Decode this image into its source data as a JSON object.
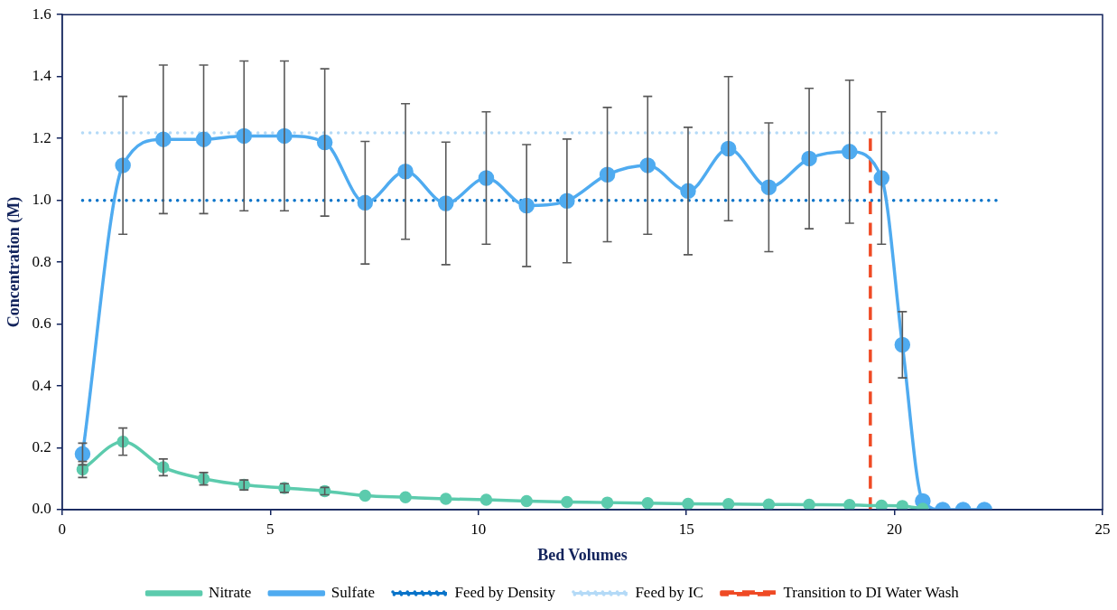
{
  "chart_data": {
    "type": "line",
    "xlabel": "Bed Volumes",
    "ylabel": "Concentration (M)",
    "xlim": [
      0,
      25
    ],
    "xticks": [
      0,
      5,
      10,
      15,
      20,
      25
    ],
    "ylim": [
      0,
      1.6
    ],
    "yticks": [
      {
        "value": 0,
        "label": "0.0"
      },
      {
        "value": 0.2,
        "label": "0.2"
      },
      {
        "value": 0.4,
        "label": "0.4"
      },
      {
        "value": 0.6,
        "label": "0.6"
      },
      {
        "value": 0.8,
        "label": "0.8"
      },
      {
        "value": 1,
        "label": "1.0"
      },
      {
        "value": 1.2,
        "label": "1.2"
      },
      {
        "value": 1.4,
        "label": "1.4"
      },
      {
        "value": 1.6,
        "label": "1.6"
      }
    ],
    "grid": false,
    "legend": "bottom",
    "marker": "circle",
    "line_style": "solid",
    "series": [
      {
        "name": "Nitrate",
        "color": "#5ccbad",
        "x": [
          0.49,
          1.46,
          2.43,
          3.4,
          4.37,
          5.34,
          6.31,
          7.28,
          8.25,
          9.22,
          10.19,
          11.16,
          12.13,
          13.1,
          14.07,
          15.04,
          16.01,
          16.98,
          17.95,
          18.92,
          19.69,
          20.19,
          20.68
        ],
        "values": [
          0.13,
          0.22,
          0.137,
          0.1,
          0.08,
          0.07,
          0.06,
          0.045,
          0.04,
          0.035,
          0.032,
          0.028,
          0.025,
          0.023,
          0.021,
          0.019,
          0.018,
          0.017,
          0.016,
          0.015,
          0.013,
          0.012,
          0.003
        ],
        "errors": [
          0.026,
          0.044,
          0.027,
          0.02,
          0.016,
          0.014,
          0.012,
          null,
          null,
          null,
          null,
          null,
          null,
          null,
          null,
          null,
          null,
          null,
          null,
          null,
          null,
          null,
          null
        ]
      },
      {
        "name": "Sulfate",
        "color": "#4fabf0",
        "x": [
          0.49,
          1.46,
          2.43,
          3.4,
          4.37,
          5.34,
          6.31,
          7.28,
          8.25,
          9.22,
          10.19,
          11.16,
          12.13,
          13.1,
          14.07,
          15.04,
          16.01,
          16.98,
          17.95,
          18.92,
          19.69,
          20.19,
          20.68,
          21.16,
          21.65,
          22.16
        ],
        "values": [
          0.18,
          1.113,
          1.197,
          1.197,
          1.208,
          1.208,
          1.187,
          0.992,
          1.093,
          0.99,
          1.072,
          0.983,
          0.998,
          1.083,
          1.113,
          1.03,
          1.167,
          1.042,
          1.135,
          1.157,
          1.072,
          0.533,
          0.028,
          0,
          0,
          0
        ],
        "errors": [
          0.035,
          0.223,
          0.24,
          0.24,
          0.242,
          0.242,
          0.238,
          0.198,
          0.219,
          0.198,
          0.214,
          0.197,
          0.2,
          0.217,
          0.223,
          0.206,
          0.233,
          0.208,
          0.227,
          0.231,
          0.214,
          0.107,
          null,
          null,
          null,
          null
        ]
      },
      {
        "name": "Feed by Density",
        "color": "#0a74c9",
        "x": [
          0.49,
          22.44
        ],
        "values": [
          1.0,
          1.0
        ],
        "marker": "none",
        "line_style": "dotted"
      },
      {
        "name": "Feed by IC",
        "color": "#b4daf7",
        "x": [
          0.49,
          22.44
        ],
        "values": [
          1.218,
          1.218
        ],
        "marker": "none",
        "line_style": "dotted"
      },
      {
        "name": "Transition to DI Water Wash",
        "color": "#ef4a24",
        "x": [
          19.42,
          19.42
        ],
        "values": [
          0,
          1.2
        ],
        "marker": "none",
        "line_style": "dashed"
      }
    ]
  }
}
